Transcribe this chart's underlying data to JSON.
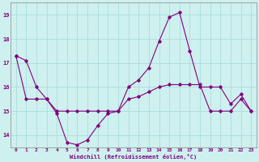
{
  "xlabel": "Windchill (Refroidissement éolien,°C)",
  "bg_color": "#cef0ee",
  "grid_color": "#aadddd",
  "line_color": "#800080",
  "ylim": [
    13.5,
    19.5
  ],
  "xlim": [
    -0.5,
    23.5
  ],
  "yticks": [
    14,
    15,
    16,
    17,
    18,
    19
  ],
  "xticks": [
    0,
    1,
    2,
    3,
    4,
    5,
    6,
    7,
    8,
    9,
    10,
    11,
    12,
    13,
    14,
    15,
    16,
    17,
    18,
    19,
    20,
    21,
    22,
    23
  ],
  "line1_x": [
    0,
    1,
    2,
    3,
    4,
    5,
    6,
    7,
    8,
    9,
    10,
    11,
    12,
    13,
    14,
    15,
    16,
    17,
    18,
    19,
    20,
    21,
    22,
    23
  ],
  "line1_y": [
    17.3,
    17.1,
    16.0,
    15.5,
    14.9,
    13.7,
    13.6,
    13.8,
    14.4,
    14.9,
    15.0,
    16.0,
    16.3,
    16.8,
    17.9,
    18.9,
    19.1,
    17.5,
    16.0,
    16.0,
    16.0,
    15.3,
    15.7,
    15.0
  ],
  "line2_x": [
    0,
    1,
    2,
    3,
    4,
    5,
    6,
    7,
    8,
    9,
    10,
    11,
    12,
    13,
    14,
    15,
    16,
    17,
    18,
    19,
    20,
    21,
    22,
    23
  ],
  "line2_y": [
    17.3,
    15.5,
    15.5,
    15.5,
    15.0,
    15.0,
    15.0,
    15.0,
    15.0,
    15.0,
    15.0,
    15.5,
    15.6,
    15.8,
    16.0,
    16.1,
    16.1,
    16.1,
    16.1,
    15.0,
    15.0,
    15.0,
    15.5,
    15.0
  ],
  "fig_width": 3.2,
  "fig_height": 2.0,
  "dpi": 100
}
